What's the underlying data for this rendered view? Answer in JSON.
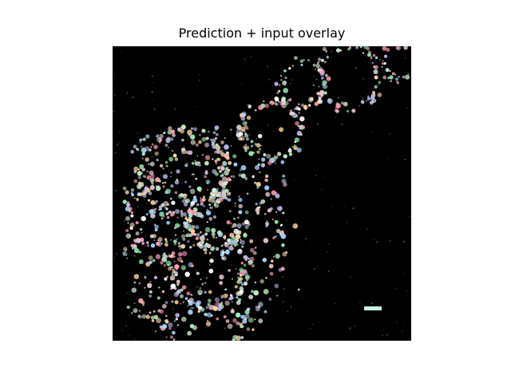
{
  "figure": {
    "title": "Prediction + input overlay"
  },
  "image": {
    "background": "#000000",
    "description_colors": [
      "#ffffff",
      "#e8c6c6",
      "#c6e8c6",
      "#b6b6e8",
      "#9ff0b3",
      "#ff9fb8",
      "#a8d8ff",
      "#ffd6a0"
    ]
  }
}
